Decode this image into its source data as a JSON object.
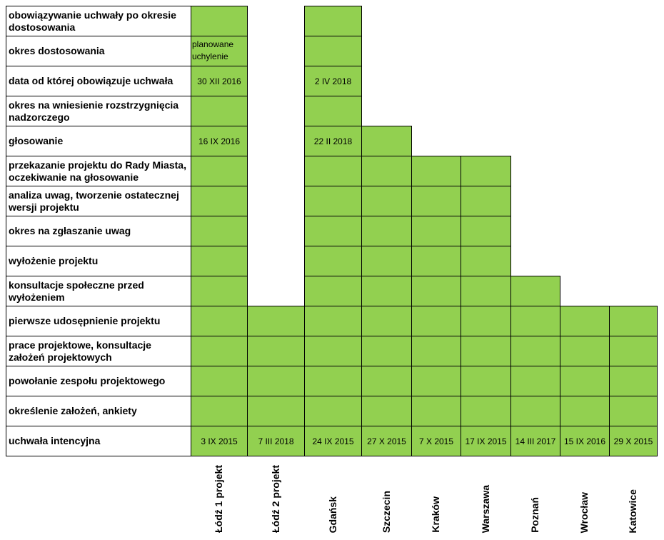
{
  "chart_data": {
    "type": "table",
    "rows": [
      "obowiązywanie uchwały po okresie dostosowania",
      "okres dostosowania",
      "data od której obowiązuje uchwała",
      "okres na wniesienie rozstrzygnięcia nadzorczego",
      "głosowanie",
      "przekazanie projektu do Rady Miasta, oczekiwanie na głosowanie",
      "analiza uwag, tworzenie ostatecznej wersji projektu",
      "okres na zgłaszanie uwag",
      "wyłożenie projektu",
      "konsultacje społeczne przed wyłożeniem",
      "pierwsze udosępnienie projektu",
      "prace projektowe, konsultacje założeń projektowych",
      "powołanie zespołu projektowego",
      "określenie założeń, ankiety",
      "uchwała intencyjna"
    ],
    "cities": [
      {
        "name": "Łódź 1 projekt",
        "reached_rows": 14,
        "labels": {
          "1": "planowane uchylenie",
          "2": "30 XII 2016",
          "4": "16 IX 2016",
          "14": "3 IX 2015"
        }
      },
      {
        "name": "Łódź 2 projekt",
        "reached_rows": 4,
        "labels": {
          "14": "7 III 2018"
        }
      },
      {
        "name": "Gdańsk",
        "reached_rows": 14,
        "labels": {
          "2": "2 IV 2018",
          "4": "22 II 2018",
          "14": "24 IX  2015"
        }
      },
      {
        "name": "Szczecin",
        "reached_rows": 10,
        "labels": {
          "14": "27 X 2015"
        }
      },
      {
        "name": "Kraków",
        "reached_rows": 9,
        "labels": {
          "14": "7 X 2015"
        }
      },
      {
        "name": "Warszawa",
        "reached_rows": 9,
        "labels": {
          "14": "17 IX 2015"
        }
      },
      {
        "name": "Poznań",
        "reached_rows": 5,
        "labels": {
          "14": "14 III 2017"
        }
      },
      {
        "name": "Wrocław",
        "reached_rows": 4,
        "labels": {
          "14": "15 IX 2016"
        }
      },
      {
        "name": "Katowice",
        "reached_rows": 4,
        "labels": {
          "14": "29 X 2015"
        }
      }
    ]
  },
  "colors": {
    "cell_fill": "#92d050",
    "border": "#000000"
  }
}
